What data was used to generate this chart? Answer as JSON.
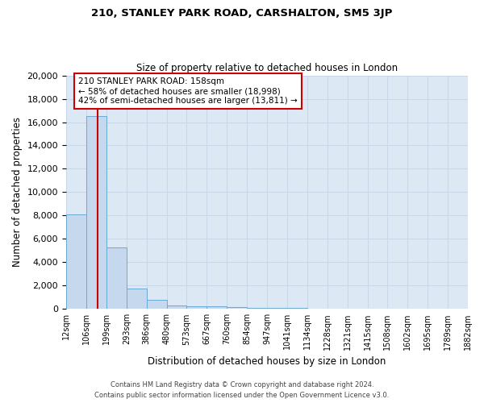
{
  "title1": "210, STANLEY PARK ROAD, CARSHALTON, SM5 3JP",
  "title2": "Size of property relative to detached houses in London",
  "xlabel": "Distribution of detached houses by size in London",
  "ylabel": "Number of detached properties",
  "bin_labels": [
    "12sqm",
    "106sqm",
    "199sqm",
    "293sqm",
    "386sqm",
    "480sqm",
    "573sqm",
    "667sqm",
    "760sqm",
    "854sqm",
    "947sqm",
    "1041sqm",
    "1134sqm",
    "1228sqm",
    "1321sqm",
    "1415sqm",
    "1508sqm",
    "1602sqm",
    "1695sqm",
    "1789sqm",
    "1882sqm"
  ],
  "bin_edges": [
    12,
    106,
    199,
    293,
    386,
    480,
    573,
    667,
    760,
    854,
    947,
    1041,
    1134,
    1228,
    1321,
    1415,
    1508,
    1602,
    1695,
    1789,
    1882
  ],
  "bar_heights": [
    8100,
    16500,
    5300,
    1750,
    750,
    300,
    250,
    200,
    150,
    100,
    80,
    60,
    50,
    40,
    30,
    25,
    20,
    15,
    10,
    8
  ],
  "bar_color": "#c5d8ee",
  "bar_edge_color": "#6aaad4",
  "bg_color": "#dce9f5",
  "grid_color": "#c8d8e8",
  "vline_x": 158,
  "vline_color": "#cc0000",
  "annotation_line1": "210 STANLEY PARK ROAD: 158sqm",
  "annotation_line2": "← 58% of detached houses are smaller (18,998)",
  "annotation_line3": "42% of semi-detached houses are larger (13,811) →",
  "annotation_box_color": "#ffffff",
  "annotation_border_color": "#cc0000",
  "ylim": [
    0,
    20000
  ],
  "yticks": [
    0,
    2000,
    4000,
    6000,
    8000,
    10000,
    12000,
    14000,
    16000,
    18000,
    20000
  ],
  "footer1": "Contains HM Land Registry data © Crown copyright and database right 2024.",
  "footer2": "Contains public sector information licensed under the Open Government Licence v3.0.",
  "fig_bg": "#ffffff"
}
